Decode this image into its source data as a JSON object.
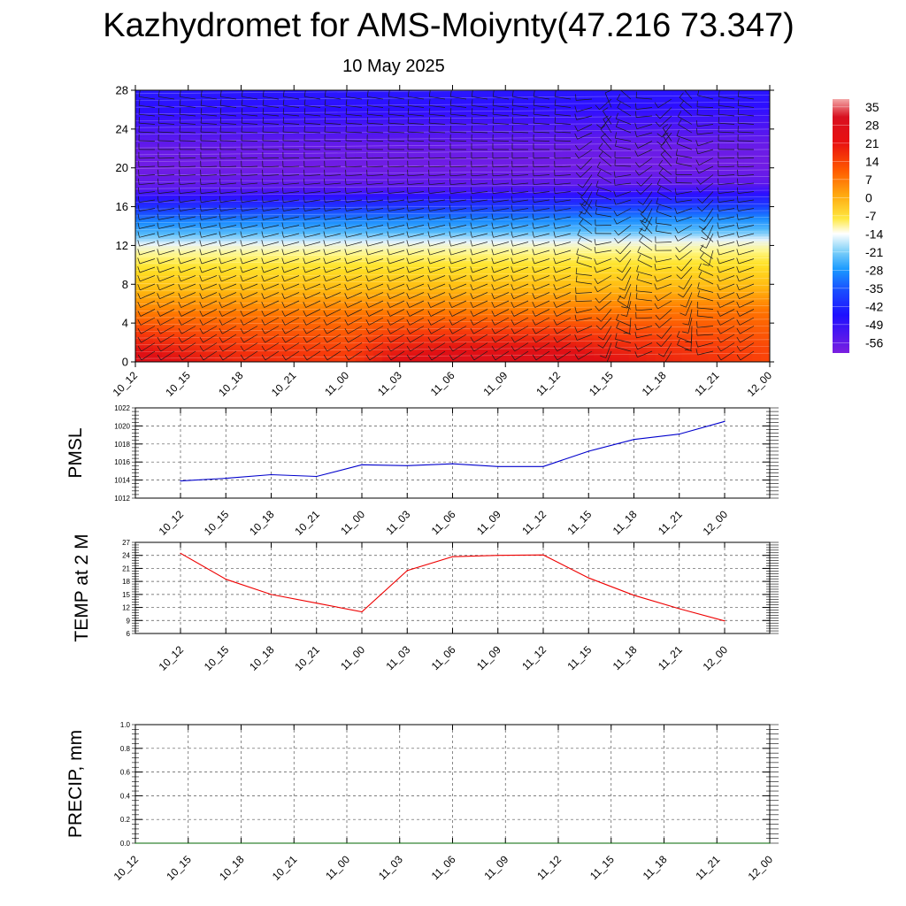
{
  "title": "Kazhydromet for AMS-Moiynty(47.216 73.347)",
  "subtitle": "10 May 2025",
  "chart_data": [
    {
      "type": "heatmap",
      "x_ticks": [
        "10_12",
        "10_15",
        "10_18",
        "10_21",
        "11_00",
        "11_03",
        "11_06",
        "11_09",
        "11_12",
        "11_15",
        "11_18",
        "11_21",
        "12_00"
      ],
      "y_ticks": [
        0,
        4,
        8,
        12,
        16,
        20,
        24,
        28
      ],
      "ylim": [
        0,
        28
      ],
      "colorbar_labels": [
        35,
        28,
        21,
        14,
        7,
        0,
        -7,
        -14,
        -21,
        -28,
        -35,
        -42,
        -49,
        -56
      ],
      "colorbar_range": [
        -60,
        38
      ],
      "profile": [
        [
          0,
          24
        ],
        [
          1,
          22
        ],
        [
          2,
          19
        ],
        [
          3,
          16
        ],
        [
          4,
          13
        ],
        [
          5,
          10
        ],
        [
          6,
          7
        ],
        [
          7,
          4
        ],
        [
          8,
          1
        ],
        [
          9,
          -2
        ],
        [
          10,
          -5
        ],
        [
          11,
          -9
        ],
        [
          12,
          -13
        ],
        [
          13,
          -21
        ],
        [
          14,
          -29
        ],
        [
          15,
          -37
        ],
        [
          16,
          -45
        ],
        [
          17,
          -52
        ],
        [
          18,
          -57
        ],
        [
          20,
          -59
        ],
        [
          22,
          -58
        ],
        [
          24,
          -55
        ],
        [
          26,
          -52
        ],
        [
          28,
          -50
        ]
      ],
      "surface_temp": [
        24.5,
        18.5,
        15,
        13,
        11,
        20.5,
        23.7,
        24,
        24.1,
        18.8,
        14.8,
        11.7,
        8.9
      ],
      "wind_barbs": true
    },
    {
      "type": "line",
      "ylabel": "PMSL",
      "x": [
        "10_12",
        "10_15",
        "10_18",
        "10_21",
        "11_00",
        "11_03",
        "11_06",
        "11_09",
        "11_12",
        "11_15",
        "11_18",
        "11_21",
        "12_00"
      ],
      "y_ticks": [
        1012,
        1014,
        1016,
        1018,
        1020,
        1022
      ],
      "ylim": [
        1012,
        1022
      ],
      "grid": true,
      "series": [
        {
          "color": "#0000cc",
          "values": [
            1013.9,
            1014.2,
            1014.6,
            1014.4,
            1015.7,
            1015.6,
            1015.8,
            1015.5,
            1015.5,
            1017.2,
            1018.5,
            1019.1,
            1020.5
          ]
        }
      ]
    },
    {
      "type": "line",
      "ylabel": "TEMP at 2 M",
      "x": [
        "10_12",
        "10_15",
        "10_18",
        "10_21",
        "11_00",
        "11_03",
        "11_06",
        "11_09",
        "11_12",
        "11_15",
        "11_18",
        "11_21",
        "12_00"
      ],
      "y_ticks": [
        6,
        9,
        12,
        15,
        18,
        21,
        24,
        27
      ],
      "ylim": [
        6,
        27
      ],
      "grid": true,
      "series": [
        {
          "color": "#ee0000",
          "values": [
            24.5,
            18.5,
            15,
            13,
            11,
            20.5,
            23.7,
            24,
            24.1,
            18.8,
            14.8,
            11.7,
            8.9
          ]
        }
      ]
    },
    {
      "type": "line",
      "ylabel": "PRECIP, mm",
      "x": [
        "10_12",
        "10_15",
        "10_18",
        "10_21",
        "11_00",
        "11_03",
        "11_06",
        "11_09",
        "11_12",
        "11_15",
        "11_18",
        "11_21",
        "12_00"
      ],
      "y_ticks": [
        "0.0",
        "0.2",
        "0.4",
        "0.6",
        "0.8",
        "1.0"
      ],
      "ylim": [
        0,
        1
      ],
      "grid": true,
      "series": [
        {
          "color": "#006600",
          "values": [
            0,
            0,
            0,
            0,
            0,
            0,
            0,
            0,
            0,
            0,
            0,
            0,
            0
          ]
        }
      ]
    }
  ]
}
